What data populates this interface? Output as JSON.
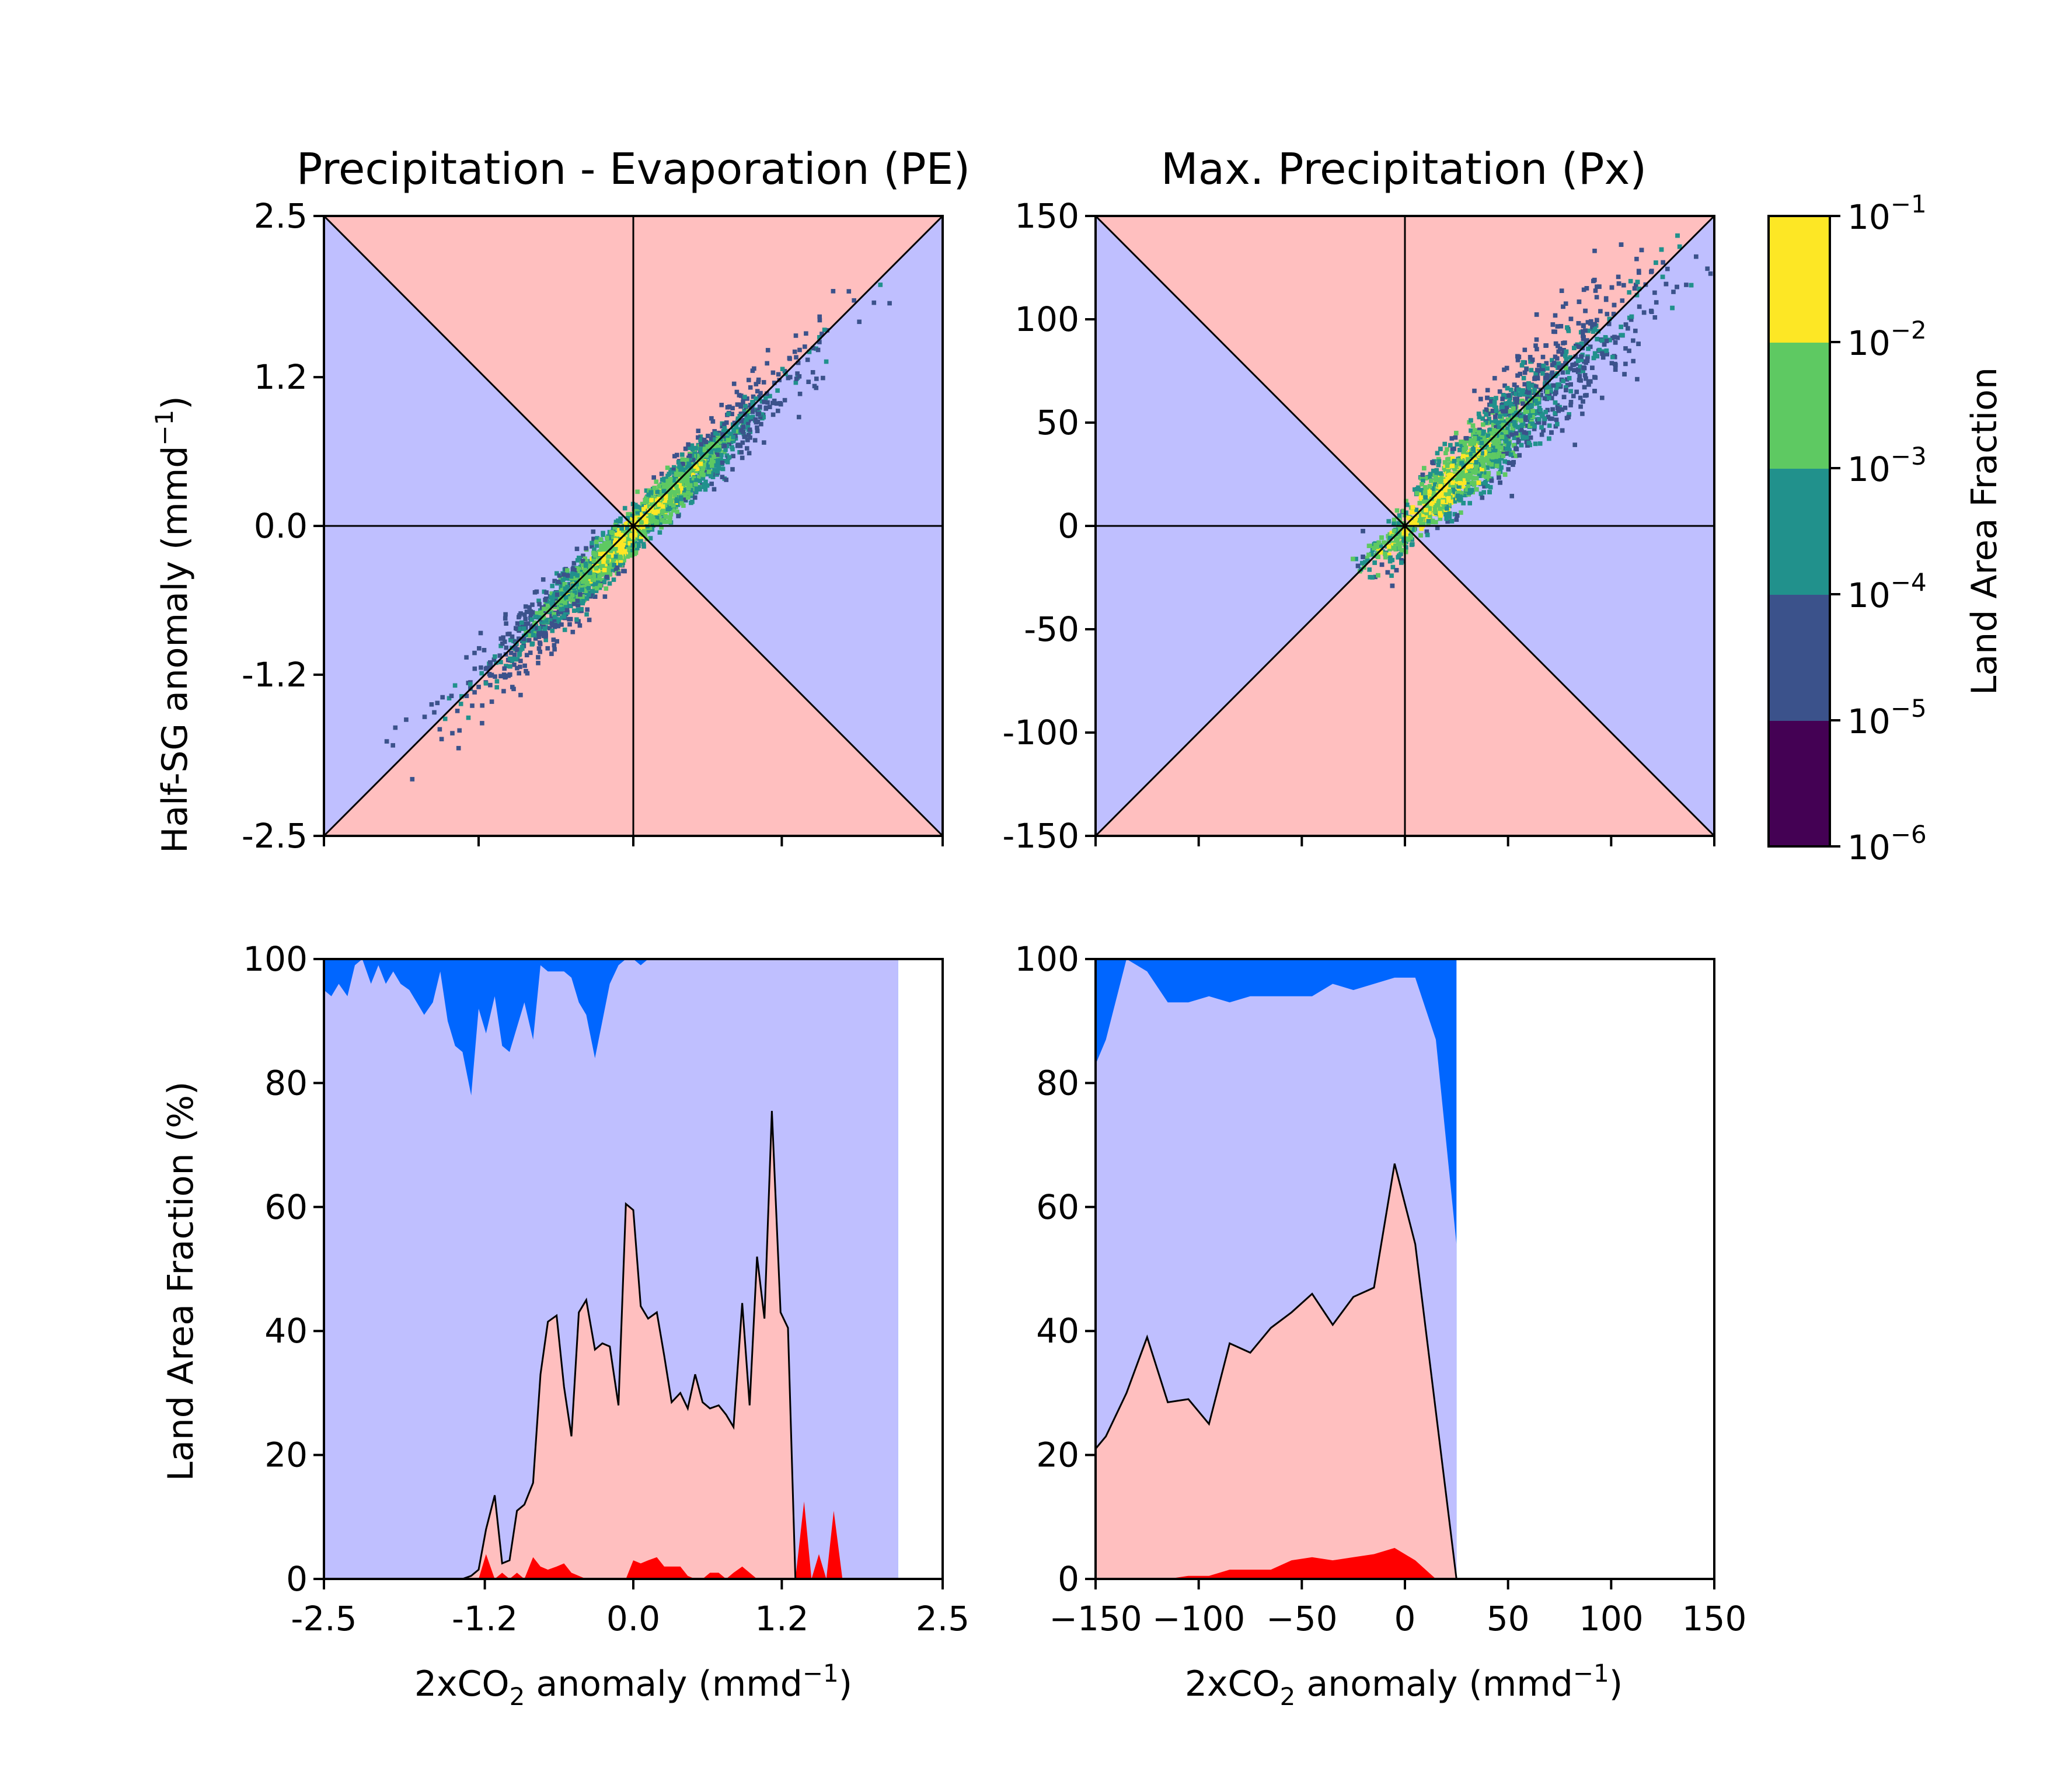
{
  "colors": {
    "pink": "#ffbfbf",
    "lavender": "#bfbfff",
    "blue": "#0066ff",
    "red": "#ff0000",
    "cb_bins": [
      "#440154",
      "#3b528b",
      "#21918c",
      "#5ec962",
      "#fde725"
    ]
  },
  "chart_data": [
    {
      "type": "heatmap",
      "title": "Precipitation - Evaporation (PE)",
      "ylabel": "Half-SG anomaly (mmd",
      "ylabel_sup": "−1",
      "ylabel_end": ")",
      "xlim": [
        -2.5,
        2.5
      ],
      "ylim": [
        -2.5,
        2.5
      ],
      "ticks": [
        -2.5,
        -1.2,
        0.0,
        1.2,
        2.5
      ],
      "tick_labels": [
        "-2.5",
        "-1.2",
        "0.0",
        "1.2",
        "2.5"
      ],
      "distribution": "density concentrated along the 1:1 line, x from about -2.2 to 2.4, highest near 0",
      "reference_lines": [
        "y = x",
        "y = -x",
        "x = 0",
        "y = 0"
      ]
    },
    {
      "type": "heatmap",
      "title": "Max. Precipitation (Px)",
      "xlim": [
        -150,
        150
      ],
      "ylim": [
        -150,
        150
      ],
      "ticks": [
        -150,
        -100,
        -50,
        0,
        50,
        100,
        150
      ],
      "tick_labels": [
        "-150",
        "-100",
        "-50",
        "0",
        "50",
        "100",
        "150"
      ],
      "distribution": "density concentrated along the 1:1 line, x from about -20 to 140, highest near 10",
      "reference_lines": [
        "y = x",
        "y = -x",
        "x = 0",
        "y = 0"
      ]
    },
    {
      "type": "area",
      "ylabel": "Land Area Fraction (%)",
      "xlabel": "2xCO",
      "xlabel_sub": "2",
      "xlabel_mid": " anomaly (mmd",
      "xlabel_sup": "−1",
      "xlabel_end": ")",
      "xlim": [
        -2.5,
        2.5
      ],
      "ylim": [
        0,
        100
      ],
      "xticks": [
        -2.5,
        -1.2,
        0.0,
        1.2,
        2.5
      ],
      "xtick_labels": [
        "-2.5",
        "-1.2",
        "0.0",
        "1.2",
        "2.5"
      ],
      "yticks": [
        0,
        20,
        40,
        60,
        80,
        100
      ],
      "ytick_labels": [
        "0",
        "20",
        "40",
        "60",
        "80",
        "100"
      ],
      "x": [
        -2.5,
        -2.44,
        -2.38,
        -2.31,
        -2.25,
        -2.19,
        -2.12,
        -2.06,
        -2.0,
        -1.94,
        -1.88,
        -1.81,
        -1.75,
        -1.69,
        -1.62,
        -1.56,
        -1.5,
        -1.44,
        -1.38,
        -1.31,
        -1.25,
        -1.19,
        -1.12,
        -1.06,
        -1.0,
        -0.94,
        -0.88,
        -0.81,
        -0.75,
        -0.69,
        -0.62,
        -0.56,
        -0.5,
        -0.44,
        -0.38,
        -0.31,
        -0.25,
        -0.19,
        -0.12,
        -0.06,
        0.0,
        0.06,
        0.12,
        0.19,
        0.25,
        0.31,
        0.38,
        0.44,
        0.5,
        0.56,
        0.62,
        0.69,
        0.75,
        0.81,
        0.88,
        0.94,
        1.0,
        1.06,
        1.12,
        1.19,
        1.25,
        1.31,
        1.38,
        1.44,
        1.5,
        1.56,
        1.62,
        1.69,
        1.75,
        1.81,
        1.88,
        1.94,
        2.0,
        2.06,
        2.14
      ],
      "lower_red": [
        0,
        0,
        0,
        0,
        0,
        0,
        0,
        0,
        0,
        0,
        0,
        0,
        0,
        0,
        0,
        0,
        0,
        0,
        0,
        0,
        0,
        4,
        0,
        1,
        0,
        1,
        0,
        3.5,
        2,
        1.5,
        2,
        2.5,
        1,
        0.5,
        0,
        0,
        0,
        0,
        0,
        0,
        3,
        2.5,
        3,
        3.5,
        2,
        2,
        2,
        0.5,
        0,
        0,
        1,
        1,
        0,
        1,
        2,
        1,
        0,
        0,
        0,
        0,
        0,
        0,
        12.5,
        0,
        4,
        0,
        11,
        0,
        0,
        0,
        0,
        0,
        0,
        0,
        0
      ],
      "middle_black": [
        0,
        0,
        0,
        0,
        0,
        0,
        0,
        0,
        0,
        0,
        0,
        0,
        0,
        0,
        0,
        0,
        0,
        0,
        0,
        0,
        0,
        0,
        0,
        0,
        0,
        0,
        0,
        0,
        0,
        0,
        0,
        0,
        0,
        0,
        0,
        0,
        0,
        0,
        0,
        0,
        0,
        0,
        0,
        0,
        0,
        0,
        0,
        0,
        0,
        0,
        0,
        0,
        0,
        0,
        0,
        0,
        0,
        0,
        0,
        0,
        0,
        0,
        0,
        0,
        0,
        0,
        0,
        0,
        0,
        0,
        0,
        0,
        0,
        0,
        0
      ],
      "upper_pe": [
        0,
        0,
        0,
        0,
        0,
        0,
        0,
        0,
        0,
        1.5,
        8,
        13.5,
        2.5,
        3,
        11,
        12,
        15.5,
        33,
        41.5,
        42.5,
        31,
        23,
        43,
        45,
        37,
        38,
        37.5,
        28,
        60.5,
        59.5,
        44,
        42,
        43,
        36,
        28.5,
        30,
        27.5,
        33,
        28.5,
        27.5,
        28,
        26.5,
        24.5,
        44.5,
        28,
        52,
        42,
        75.5,
        43,
        40.5,
        0,
        0,
        0,
        0,
        0,
        0,
        0,
        0,
        0,
        0,
        0,
        0,
        0,
        0,
        0,
        0,
        0,
        0,
        0,
        0,
        0,
        0,
        0,
        0,
        0
      ],
      "top_blue": [
        95,
        94,
        96,
        94,
        99,
        100,
        96,
        99,
        96,
        98,
        96,
        95,
        93,
        91,
        93,
        98,
        90,
        86,
        85,
        78,
        92,
        88,
        94,
        86,
        85,
        89,
        93,
        87,
        99,
        98,
        98,
        98,
        97,
        93,
        91,
        84,
        90,
        96,
        99,
        100,
        100,
        99,
        100,
        100,
        100,
        100,
        100,
        100,
        100,
        100,
        100,
        100,
        100,
        100,
        100,
        100,
        100,
        100,
        100,
        100,
        100,
        100,
        100,
        100,
        100,
        100,
        100,
        100,
        100,
        100,
        100,
        100,
        100,
        100,
        100
      ],
      "pe_x": [
        -2.5,
        -2.44,
        -2.38,
        -2.31,
        -2.25,
        -2.19,
        -2.12,
        -2.06,
        -2.0,
        -1.94,
        -1.88,
        -1.81,
        -1.75,
        -1.69,
        -1.62,
        -1.56,
        -1.5,
        -1.44,
        -1.38,
        -1.31,
        -1.25,
        -1.19,
        -1.12,
        -1.06,
        -1.0,
        -0.94,
        -0.88,
        -0.81,
        -0.75,
        -0.69,
        -0.62,
        -0.56,
        -0.5,
        -0.44,
        -0.38,
        -0.31,
        -0.25,
        -0.19,
        -0.12,
        -0.06,
        0.0,
        0.06,
        0.12,
        0.19,
        0.25,
        0.31,
        0.38,
        0.44,
        0.5,
        0.56,
        0.62,
        0.69,
        0.75,
        0.81,
        0.88,
        0.94,
        1.0,
        1.06,
        1.12,
        1.19,
        1.25,
        1.31,
        1.38,
        1.44,
        1.5,
        1.56,
        1.62,
        1.69,
        1.75,
        1.81,
        1.88,
        1.94,
        2.0,
        2.06,
        2.14
      ],
      "pe_line": [
        0,
        0,
        0,
        0,
        0,
        0,
        0,
        0,
        0,
        0,
        0,
        0,
        0,
        0,
        0,
        0,
        0,
        0,
        0,
        0.5,
        1.5,
        8,
        13.5,
        2.5,
        3,
        11,
        12,
        15.5,
        33,
        41.5,
        42.5,
        31,
        23,
        43,
        45,
        37,
        38,
        37.5,
        28,
        60.5,
        59.5,
        44,
        42,
        43,
        36,
        28.5,
        30,
        27.5,
        33,
        28.5,
        27.5,
        28,
        26.5,
        24.5,
        44.5,
        28,
        52,
        42,
        75.5,
        43,
        40.5,
        0,
        0,
        0,
        0,
        0,
        0,
        0,
        0,
        0,
        0,
        0,
        0,
        0,
        0
      ],
      "blue_top_line": [
        95,
        94,
        96,
        94,
        99,
        100,
        96,
        99,
        96,
        98,
        96,
        95,
        93,
        91,
        93,
        98,
        90,
        86,
        85,
        78,
        92,
        88,
        94,
        86,
        85,
        89,
        93,
        87,
        99,
        98,
        98,
        98,
        97,
        93,
        91,
        84,
        90,
        96,
        99,
        100,
        100
      ]
    },
    {
      "type": "area",
      "xlabel": "2xCO",
      "xlabel_sub": "2",
      "xlabel_mid": " anomaly (mmd",
      "xlabel_sup": "−1",
      "xlabel_end": ")",
      "xlim": [
        -150,
        150
      ],
      "ylim": [
        0,
        100
      ],
      "xticks": [
        -150,
        -100,
        -50,
        0,
        50,
        100,
        150
      ],
      "xtick_labels": [
        "−150",
        "−100",
        "−50",
        "0",
        "50",
        "100",
        "150"
      ],
      "yticks": [
        0,
        20,
        40,
        60,
        80,
        100
      ],
      "ytick_labels": [
        "0",
        "20",
        "40",
        "60",
        "80",
        "100"
      ],
      "x": [
        -150,
        -145,
        -135,
        -125,
        -115,
        -105,
        -95,
        -85,
        -75,
        -65,
        -55,
        -45,
        -35,
        -25,
        -15,
        -5,
        5,
        15,
        25
      ],
      "top_blue": [
        83,
        87,
        100,
        98,
        93,
        93,
        94,
        93,
        94,
        94,
        94,
        94,
        96,
        95,
        96,
        97,
        97,
        87,
        54
      ],
      "black_line": [
        21,
        23,
        30,
        39,
        28.5,
        29,
        25,
        38,
        36.5,
        40.5,
        43,
        46,
        41,
        45.5,
        47,
        67,
        54,
        27,
        0
      ],
      "red_area": [
        0,
        0,
        0,
        0,
        0,
        0.5,
        0.5,
        1.5,
        1.5,
        1.5,
        3,
        3.5,
        3,
        3.5,
        4,
        5,
        3,
        0,
        0
      ]
    },
    {
      "type": "colorbar",
      "label": "Land Area Fraction",
      "scale": "log",
      "range": [
        1e-06,
        0.1
      ],
      "tick_base": "10",
      "tick_exponents": [
        "−6",
        "−5",
        "−4",
        "−3",
        "−2",
        "−1"
      ]
    }
  ]
}
